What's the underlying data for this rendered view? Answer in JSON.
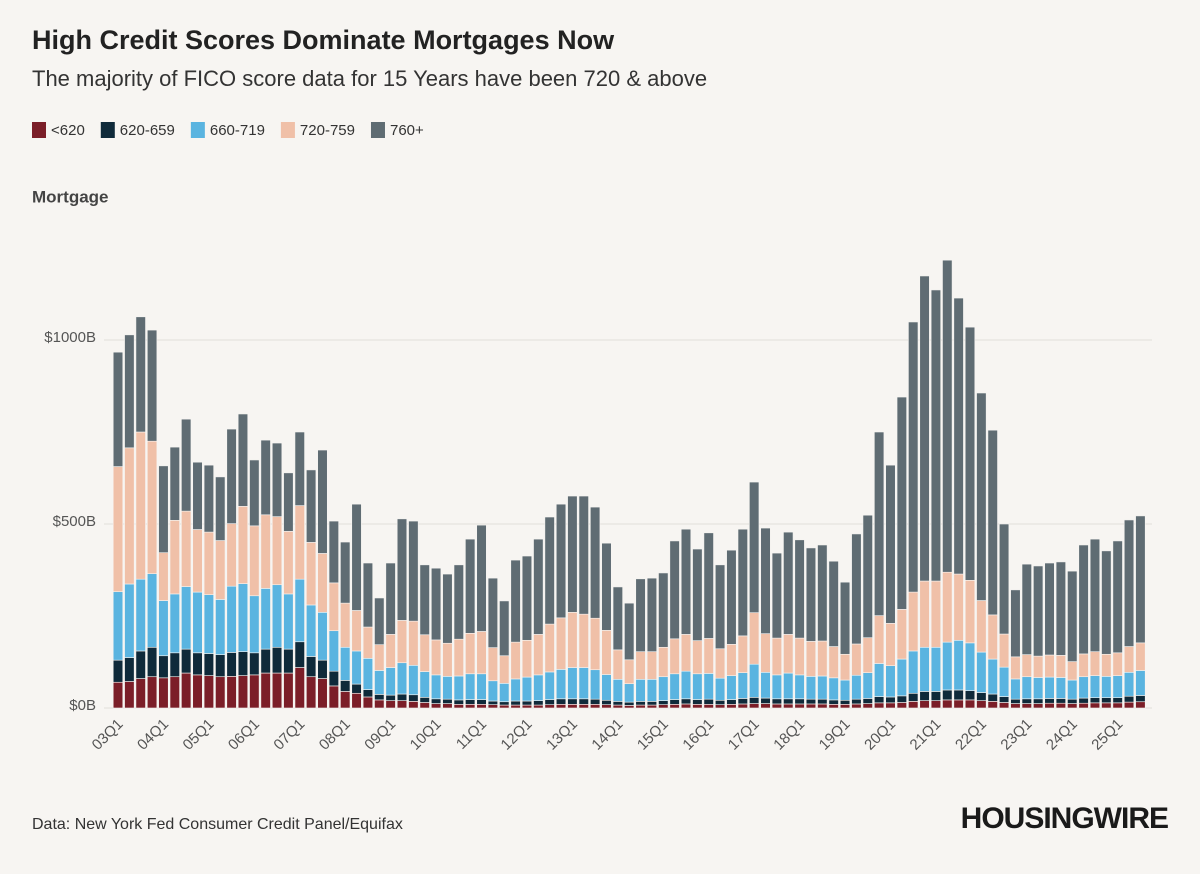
{
  "chart_data": {
    "type": "stacked_bar",
    "title": "High Credit Scores Dominate Mortgages Now",
    "subtitle": "The majority of FICO score data for 15 Years have been 720 & above",
    "y_label": "Mortgage",
    "source": "Data: New York Fed Consumer Credit Panel/Equifax",
    "brand": "HOUSINGWIRE",
    "categories": [
      "03Q1",
      null,
      null,
      null,
      "04Q1",
      null,
      null,
      null,
      "05Q1",
      null,
      null,
      null,
      "06Q1",
      null,
      null,
      null,
      "07Q1",
      null,
      null,
      null,
      "08Q1",
      null,
      null,
      null,
      "09Q1",
      null,
      null,
      null,
      "10Q1",
      null,
      null,
      null,
      "11Q1",
      null,
      null,
      null,
      "12Q1",
      null,
      null,
      null,
      "13Q1",
      null,
      null,
      null,
      "14Q1",
      null,
      null,
      null,
      "15Q1",
      null,
      null,
      null,
      "16Q1",
      null,
      null,
      null,
      "17Q1",
      null,
      null,
      null,
      "18Q1",
      null,
      null,
      null,
      "19Q1",
      null,
      null,
      null,
      "20Q1",
      null,
      null,
      null,
      "21Q1",
      null,
      null,
      null,
      "22Q1",
      null,
      null,
      null,
      "23Q1",
      null,
      null,
      null,
      "24Q1",
      null,
      null,
      null,
      "25Q1",
      null,
      null
    ],
    "series": [
      {
        "name": "<620",
        "color": "#7b1e28",
        "values": [
          70,
          72,
          80,
          85,
          82,
          85,
          95,
          90,
          88,
          85,
          86,
          88,
          90,
          95,
          95,
          95,
          110,
          85,
          80,
          60,
          45,
          40,
          30,
          22,
          20,
          20,
          18,
          15,
          12,
          12,
          10,
          10,
          10,
          9,
          8,
          8,
          8,
          8,
          9,
          10,
          10,
          10,
          10,
          9,
          8,
          7,
          8,
          8,
          9,
          10,
          11,
          10,
          10,
          9,
          10,
          11,
          12,
          12,
          11,
          11,
          11,
          11,
          11,
          10,
          10,
          11,
          12,
          14,
          14,
          15,
          18,
          20,
          20,
          22,
          22,
          22,
          20,
          18,
          15,
          12,
          12,
          12,
          13,
          13,
          12,
          13,
          14,
          14,
          14,
          16,
          17
        ]
      },
      {
        "name": "620-659",
        "color": "#0f2a3a",
        "values": [
          60,
          65,
          75,
          80,
          60,
          65,
          65,
          60,
          60,
          60,
          65,
          65,
          60,
          65,
          70,
          65,
          70,
          55,
          50,
          40,
          30,
          25,
          20,
          15,
          15,
          18,
          18,
          14,
          13,
          12,
          12,
          13,
          13,
          10,
          9,
          11,
          11,
          12,
          14,
          15,
          15,
          15,
          14,
          12,
          10,
          9,
          10,
          10,
          11,
          13,
          14,
          13,
          14,
          12,
          13,
          15,
          17,
          15,
          14,
          14,
          14,
          13,
          13,
          12,
          11,
          13,
          14,
          17,
          16,
          18,
          22,
          25,
          25,
          27,
          27,
          25,
          22,
          20,
          16,
          12,
          13,
          13,
          13,
          13,
          12,
          14,
          14,
          14,
          14,
          16,
          17
        ]
      },
      {
        "name": "660-719",
        "color": "#5ab4e0",
        "values": [
          186,
          200,
          195,
          200,
          150,
          160,
          170,
          165,
          160,
          150,
          180,
          185,
          155,
          165,
          170,
          150,
          170,
          140,
          130,
          110,
          90,
          90,
          85,
          65,
          75,
          85,
          80,
          70,
          65,
          62,
          65,
          70,
          70,
          55,
          50,
          60,
          65,
          70,
          75,
          80,
          85,
          85,
          80,
          70,
          60,
          50,
          60,
          60,
          65,
          70,
          75,
          70,
          70,
          60,
          65,
          70,
          90,
          70,
          65,
          70,
          65,
          62,
          63,
          60,
          55,
          65,
          70,
          90,
          85,
          100,
          115,
          120,
          120,
          130,
          135,
          130,
          110,
          95,
          80,
          55,
          60,
          58,
          58,
          57,
          52,
          58,
          60,
          58,
          60,
          65,
          68
        ]
      },
      {
        "name": "720-759",
        "color": "#f0c0a8",
        "values": [
          340,
          370,
          400,
          360,
          130,
          200,
          205,
          170,
          170,
          160,
          170,
          210,
          190,
          200,
          185,
          170,
          200,
          170,
          160,
          130,
          120,
          110,
          85,
          70,
          90,
          115,
          120,
          100,
          95,
          90,
          100,
          110,
          115,
          90,
          75,
          100,
          100,
          110,
          130,
          140,
          150,
          145,
          140,
          120,
          80,
          65,
          75,
          75,
          80,
          95,
          100,
          90,
          95,
          80,
          85,
          100,
          140,
          105,
          100,
          105,
          100,
          95,
          95,
          85,
          70,
          85,
          95,
          130,
          115,
          135,
          160,
          180,
          180,
          190,
          180,
          170,
          140,
          120,
          90,
          60,
          60,
          58,
          60,
          60,
          50,
          62,
          65,
          60,
          62,
          70,
          75
        ]
      },
      {
        "name": "760+",
        "color": "#5f6c73",
        "values": [
          311,
          307,
          313,
          302,
          236,
          199,
          250,
          183,
          182,
          173,
          257,
          251,
          179,
          203,
          200,
          159,
          200,
          197,
          281,
          168,
          166,
          289,
          174,
          127,
          194,
          276,
          272,
          190,
          195,
          188,
          202,
          256,
          289,
          189,
          149,
          223,
          229,
          259,
          291,
          309,
          316,
          321,
          302,
          237,
          171,
          154,
          198,
          200,
          202,
          266,
          286,
          249,
          287,
          228,
          256,
          290,
          355,
          287,
          231,
          278,
          267,
          254,
          261,
          232,
          196,
          299,
          333,
          499,
          430,
          577,
          734,
          829,
          791,
          848,
          750,
          688,
          564,
          502,
          299,
          182,
          246,
          245,
          250,
          254,
          246,
          296,
          306,
          281,
          304,
          344,
          345
        ]
      }
    ],
    "ylim": [
      0,
      1300
    ],
    "yticks": [
      {
        "value": 0,
        "label": "$0B"
      },
      {
        "value": 500,
        "label": "$500B"
      },
      {
        "value": 1000,
        "label": "$1000B"
      }
    ],
    "grid": true
  }
}
